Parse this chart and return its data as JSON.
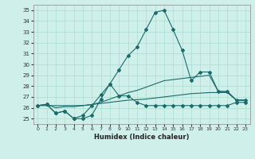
{
  "title": "",
  "xlabel": "Humidex (Indice chaleur)",
  "background_color": "#cff0ea",
  "grid_color": "#aaddcc",
  "line_color": "#1a6b6b",
  "xlim": [
    -0.5,
    23.5
  ],
  "ylim": [
    24.5,
    35.5
  ],
  "xticks": [
    0,
    1,
    2,
    3,
    4,
    5,
    6,
    7,
    8,
    9,
    10,
    11,
    12,
    13,
    14,
    15,
    16,
    17,
    18,
    19,
    20,
    21,
    22,
    23
  ],
  "yticks": [
    25,
    26,
    27,
    28,
    29,
    30,
    31,
    32,
    33,
    34,
    35
  ],
  "series": [
    [
      26.2,
      26.3,
      25.5,
      25.7,
      25.0,
      25.0,
      25.3,
      26.8,
      28.2,
      27.1,
      27.1,
      26.5,
      26.2,
      26.2,
      26.2,
      26.2,
      26.2,
      26.2,
      26.2,
      26.2,
      26.2,
      26.2,
      26.5,
      26.5
    ],
    [
      26.2,
      26.3,
      25.5,
      25.7,
      25.0,
      25.3,
      26.2,
      27.2,
      28.2,
      29.5,
      30.8,
      31.6,
      33.2,
      34.8,
      35.0,
      33.2,
      31.3,
      28.5,
      29.3,
      29.3,
      27.5,
      27.5,
      26.7,
      26.7
    ],
    [
      26.2,
      26.3,
      26.0,
      26.1,
      26.1,
      26.2,
      26.3,
      26.5,
      26.8,
      27.1,
      27.4,
      27.6,
      27.9,
      28.2,
      28.5,
      28.6,
      28.7,
      28.8,
      28.9,
      29.0,
      27.5,
      27.5,
      26.7,
      26.7
    ],
    [
      26.2,
      26.2,
      26.2,
      26.2,
      26.2,
      26.2,
      26.3,
      26.4,
      26.5,
      26.6,
      26.7,
      26.75,
      26.8,
      26.9,
      27.0,
      27.1,
      27.2,
      27.3,
      27.35,
      27.4,
      27.4,
      27.4,
      26.7,
      26.7
    ]
  ]
}
